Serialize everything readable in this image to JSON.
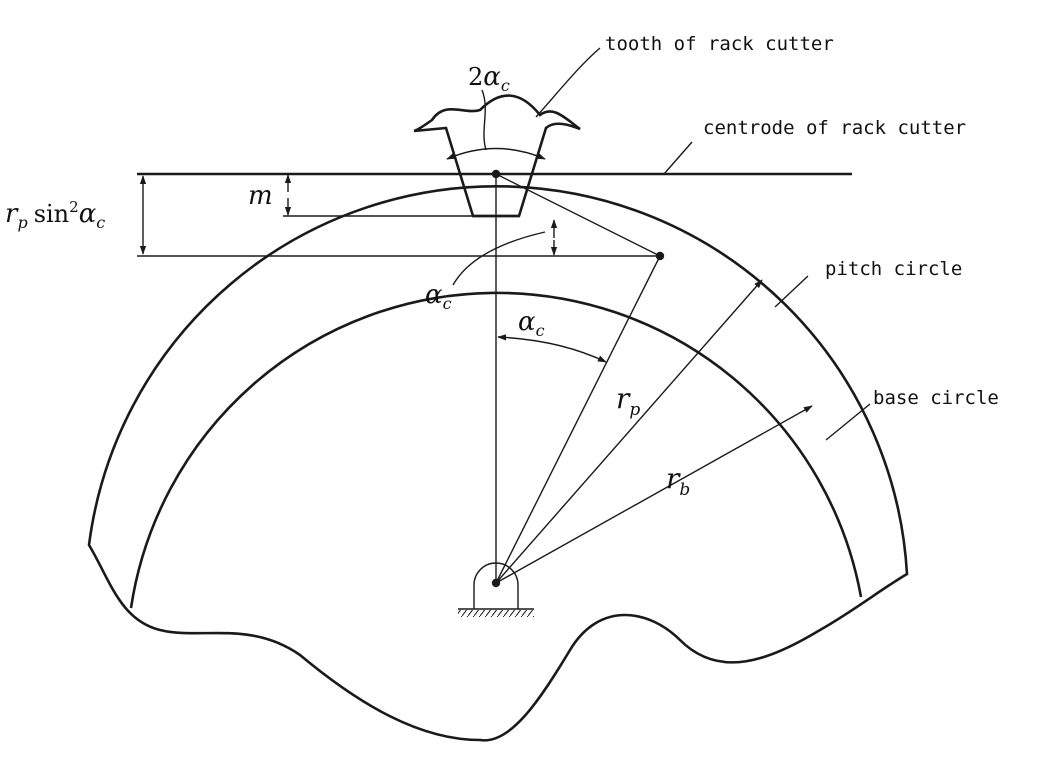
{
  "labels": {
    "tooth": "tooth of rack cutter",
    "centrode": "centrode of rack cutter",
    "pitch_circle": "pitch circle",
    "base_circle": "base circle"
  },
  "symbols": {
    "two": "2",
    "alpha": "α",
    "sub_c": "c",
    "m": "m",
    "r": "r",
    "sub_p": "p",
    "sub_b": "b",
    "sin": "sin",
    "sq": "2"
  },
  "colors": {
    "ink": "#1a1a1a",
    "background": "#ffffff"
  }
}
